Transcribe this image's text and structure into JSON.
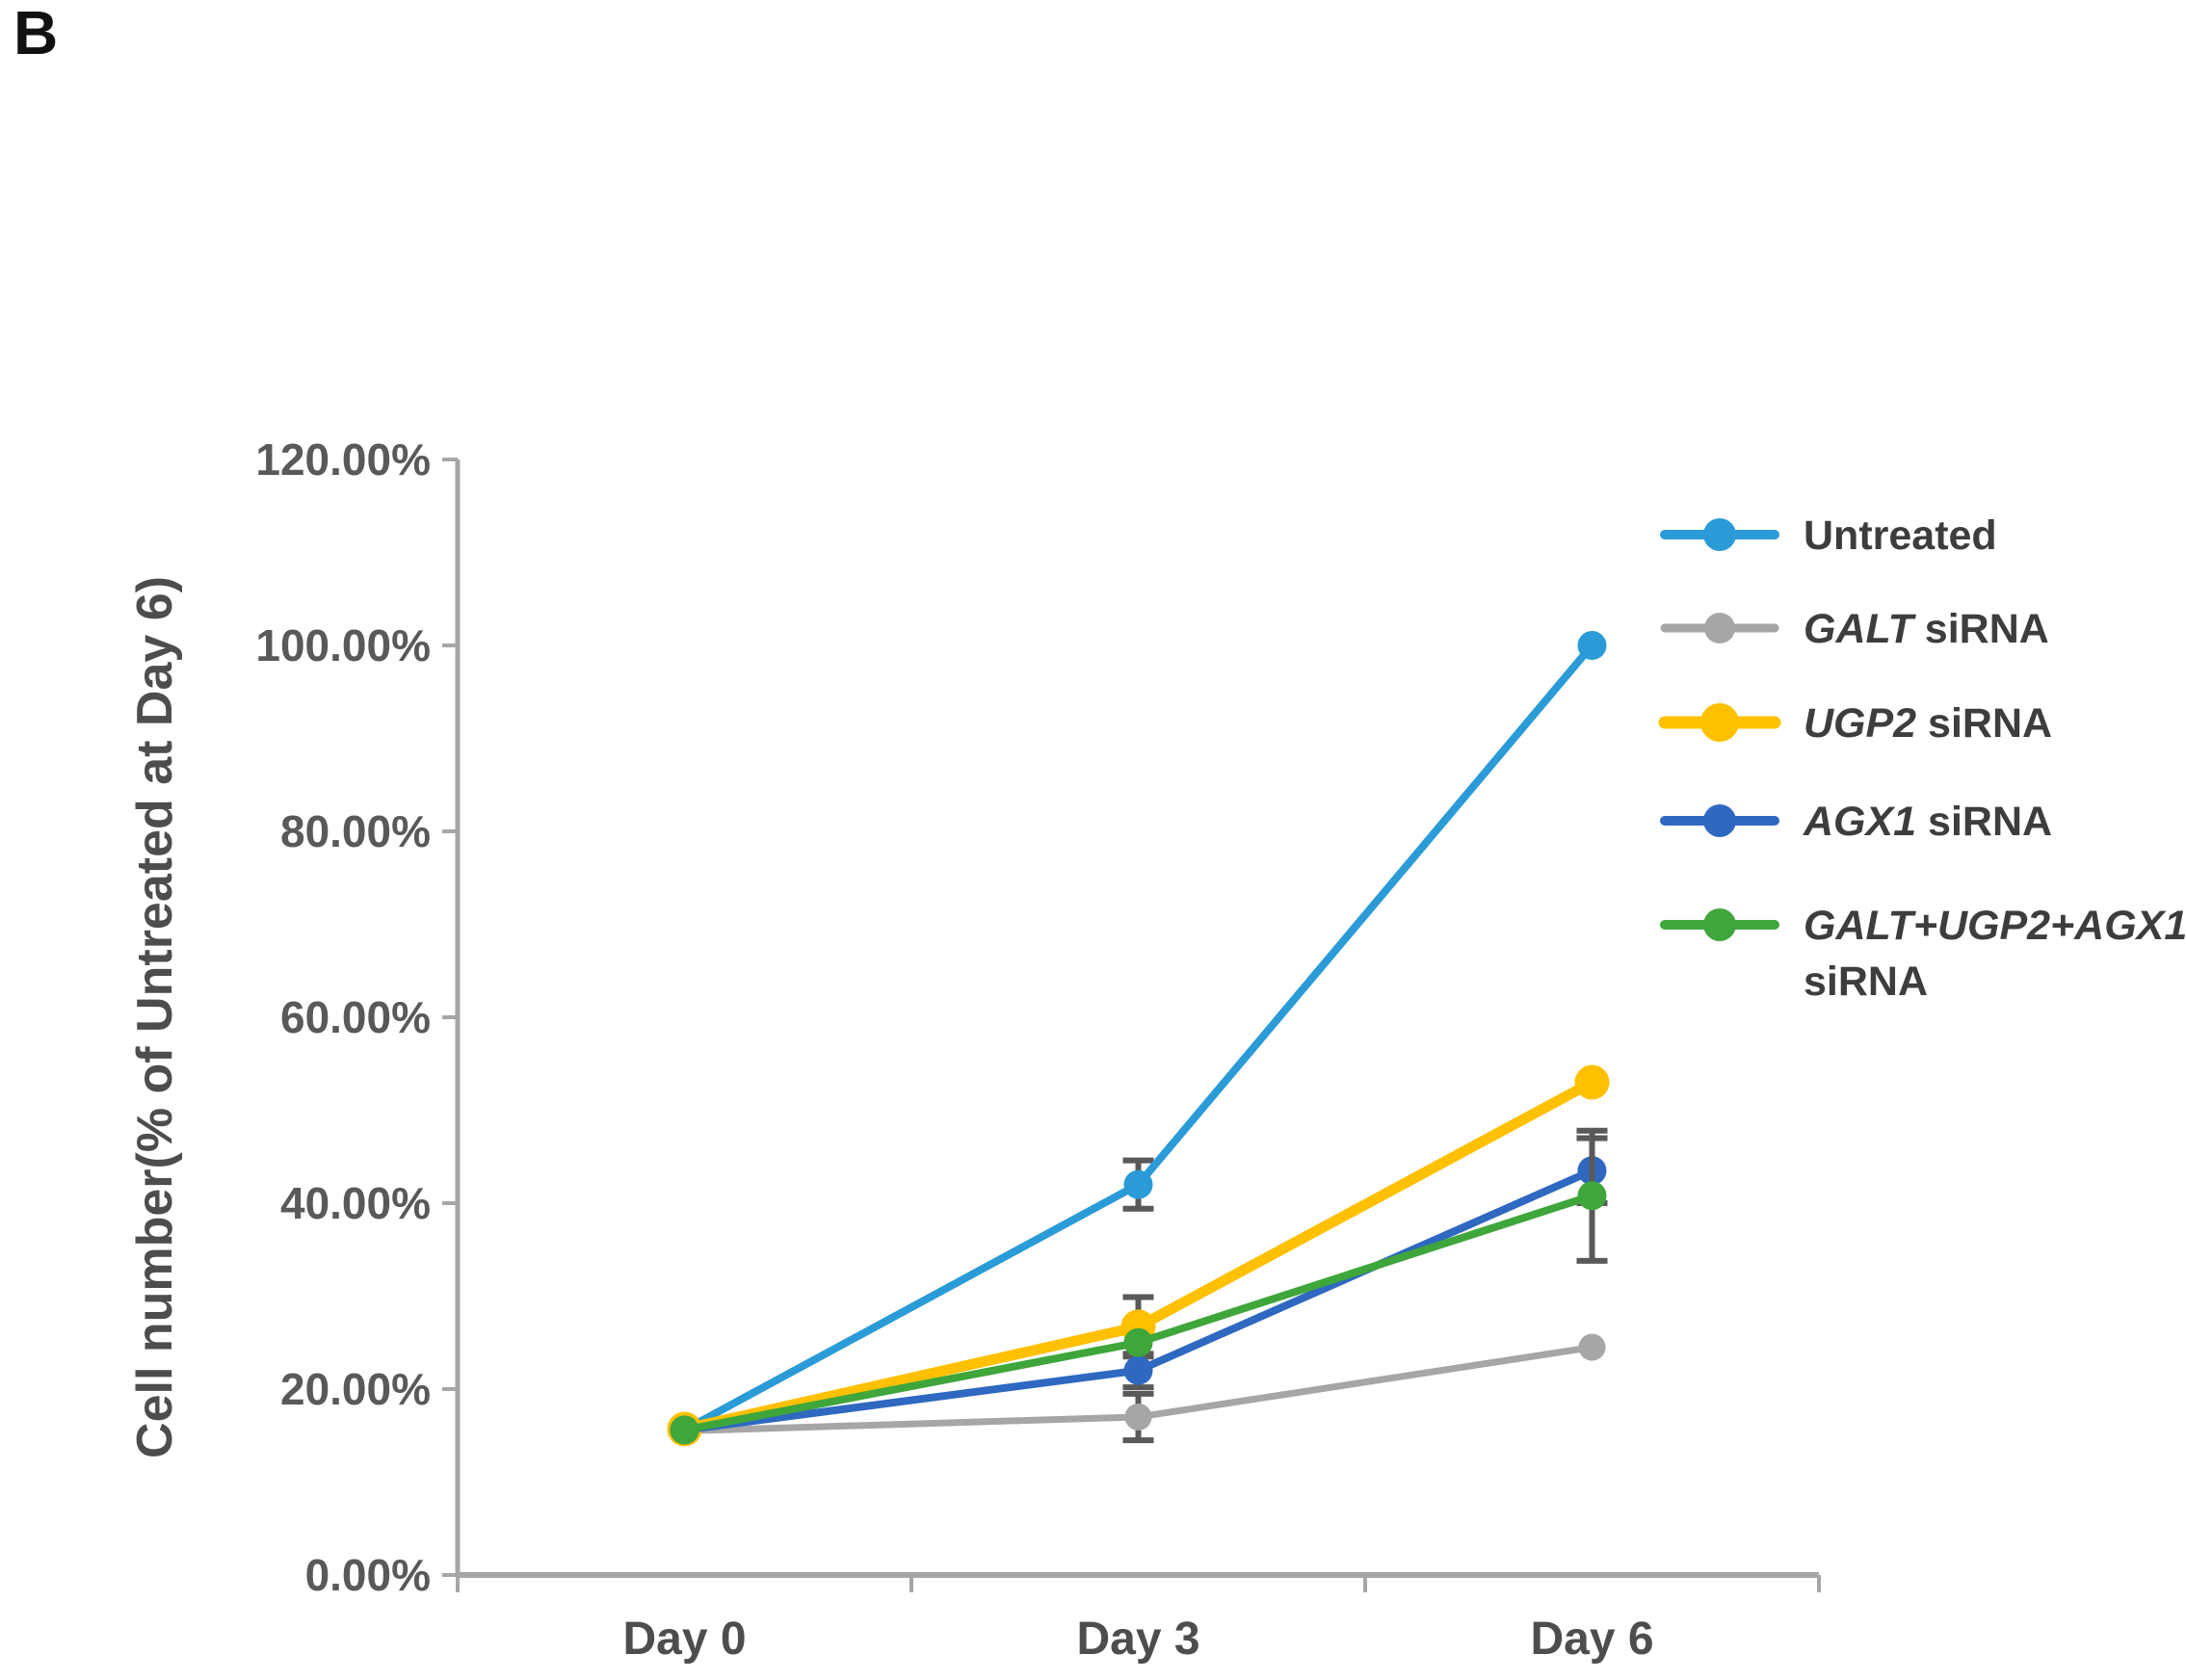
{
  "panel_label": "B",
  "chart_data": {
    "type": "line",
    "title": "",
    "categories": [
      "Day 0",
      "Day 3",
      "Day 6"
    ],
    "xlabel": "",
    "ylabel": "Cell number(% of Untreated at Day 6)",
    "ylim": [
      0,
      120
    ],
    "ytick_values": [
      0,
      20,
      40,
      60,
      80,
      100,
      120
    ],
    "ytick_labels": [
      "0.00%",
      "20.00%",
      "40.00%",
      "60.00%",
      "80.00%",
      "100.00%",
      "120.00%"
    ],
    "grid": false,
    "legend_position": "right",
    "error_bar_color": "#595959",
    "axis_color": "#a6a6a6",
    "tick_label_color": "#595959",
    "category_label_color": "#4d4d4d",
    "ylabel_color": "#4d4d4d",
    "legend_text_color": "#3d3d3d",
    "series": [
      {
        "name": "Untreated",
        "legend_gene": "",
        "legend_rest": "Untreated",
        "legend_wrap": false,
        "color": "#2b9bd7",
        "values": [
          15.6,
          42.0,
          100.0
        ],
        "errors": [
          null,
          2.6,
          null
        ],
        "line_width": 8,
        "marker_radius": 15
      },
      {
        "name": "GALT siRNA",
        "legend_gene": "GALT",
        "legend_rest": " siRNA",
        "legend_wrap": false,
        "color": "#a6a6a6",
        "values": [
          15.5,
          17.0,
          24.5
        ],
        "errors": [
          null,
          2.5,
          null
        ],
        "line_width": 7,
        "marker_radius": 14
      },
      {
        "name": "UGP2 siRNA",
        "legend_gene": "UGP2",
        "legend_rest": " siRNA",
        "legend_wrap": false,
        "color": "#ffc000",
        "values": [
          15.7,
          26.7,
          53.0
        ],
        "errors": [
          null,
          3.2,
          null
        ],
        "line_width": 11,
        "marker_radius": 18
      },
      {
        "name": "AGX1 siRNA",
        "legend_gene": "AGX1",
        "legend_rest": " siRNA",
        "legend_wrap": false,
        "color": "#2e68c0",
        "values": [
          15.6,
          22.0,
          43.5
        ],
        "errors": [
          null,
          1.8,
          3.5
        ],
        "line_width": 8,
        "marker_radius": 15
      },
      {
        "name": "GALT+UGP2+AGX1 siRNA",
        "legend_gene": "GALT+UGP2+AGX1",
        "legend_rest": "siRNA",
        "legend_wrap": true,
        "color": "#3ea63b",
        "values": [
          15.6,
          25.0,
          40.8
        ],
        "errors": [
          null,
          null,
          7.0
        ],
        "line_width": 8,
        "marker_radius": 15
      }
    ]
  }
}
